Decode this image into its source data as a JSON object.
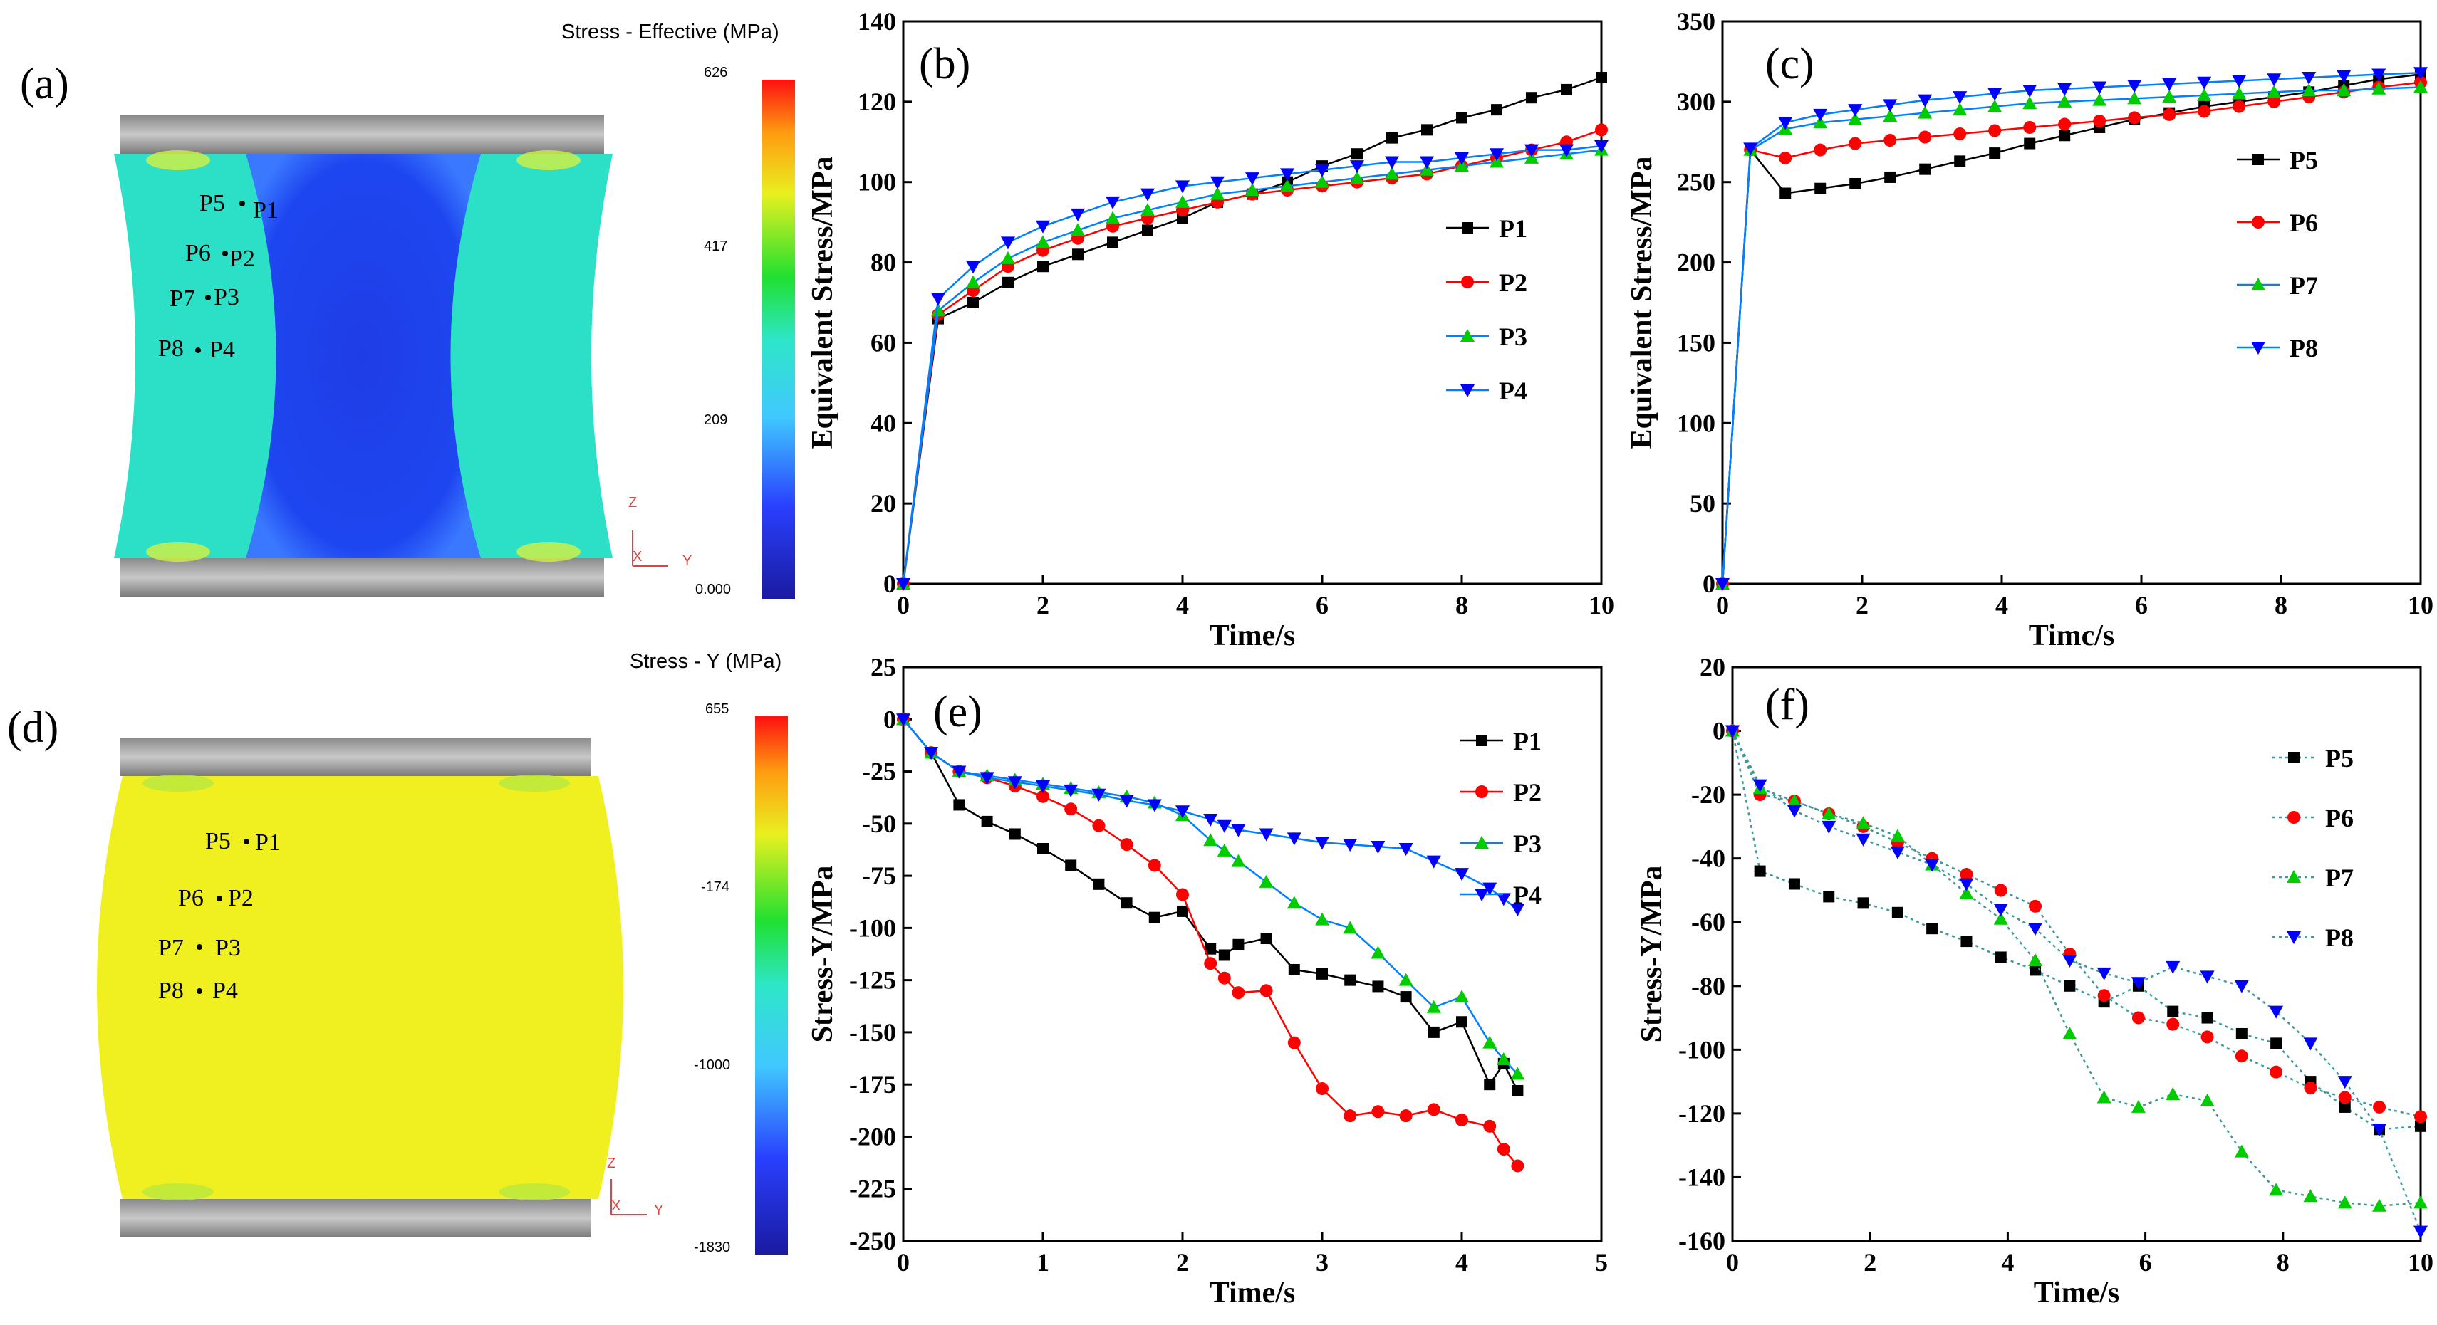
{
  "colors": {
    "P1": "#000000",
    "P2": "#ff0000",
    "P3": "#00cc00",
    "P4": "#0000ff",
    "P5": "#000000",
    "P6": "#ff0000",
    "P7": "#00cc00",
    "P8": "#0000ff",
    "p3_line": "#0080ff",
    "dotted_line": "#3c9a9a"
  },
  "panels": {
    "a": {
      "letter": "(a)",
      "colorbar_title": "Stress - Effective (MPa)",
      "colorbar_ticks": [
        "626",
        "417",
        "209",
        "0.000"
      ],
      "points": [
        "P5",
        "P1",
        "P6",
        "P2",
        "P7",
        "P3",
        "P8",
        "P4"
      ],
      "axis_z": "Z",
      "axis_y": "Y",
      "axis_x": "X"
    },
    "d": {
      "letter": "(d)",
      "colorbar_title": "Stress - Y (MPa)",
      "colorbar_ticks": [
        "655",
        "-174",
        "-1000",
        "-1830"
      ],
      "points": [
        "P5",
        "P1",
        "P6",
        "P2",
        "P7",
        "P3",
        "P8",
        "P4"
      ],
      "axis_z": "Z",
      "axis_y": "Y",
      "axis_x": "X"
    }
  },
  "chart_data": [
    {
      "id": "b",
      "letter": "(b)",
      "type": "line",
      "xlabel": "Time/s",
      "ylabel": "Equivalent Stress/MPa",
      "xlim": [
        0,
        10
      ],
      "ylim": [
        0,
        140
      ],
      "xticks": [
        "0",
        "2",
        "4",
        "6",
        "8",
        "10"
      ],
      "yticks": [
        "0",
        "20",
        "40",
        "60",
        "80",
        "100",
        "120",
        "140"
      ],
      "legend_position": "right",
      "series": [
        {
          "name": "P1",
          "marker": "square",
          "x": [
            0,
            0.5,
            1,
            1.5,
            2,
            2.5,
            3,
            3.5,
            4,
            4.5,
            5,
            5.5,
            6,
            6.5,
            7,
            7.5,
            8,
            8.5,
            9,
            9.5,
            10
          ],
          "y": [
            0,
            66,
            70,
            75,
            79,
            82,
            85,
            88,
            91,
            95,
            97,
            100,
            104,
            107,
            111,
            113,
            116,
            118,
            121,
            123,
            126
          ]
        },
        {
          "name": "P2",
          "marker": "circle",
          "x": [
            0,
            0.5,
            1,
            1.5,
            2,
            2.5,
            3,
            3.5,
            4,
            4.5,
            5,
            5.5,
            6,
            6.5,
            7,
            7.5,
            8,
            8.5,
            9,
            9.5,
            10
          ],
          "y": [
            0,
            67,
            73,
            79,
            83,
            86,
            89,
            91,
            93,
            95,
            97,
            98,
            99,
            100,
            101,
            102,
            104,
            106,
            108,
            110,
            113
          ]
        },
        {
          "name": "P3",
          "marker": "triangle-up",
          "x": [
            0,
            0.5,
            1,
            1.5,
            2,
            2.5,
            3,
            3.5,
            4,
            4.5,
            5,
            5.5,
            6,
            6.5,
            7,
            7.5,
            8,
            8.5,
            9,
            9.5,
            10
          ],
          "y": [
            0,
            68,
            75,
            81,
            85,
            88,
            91,
            93,
            95,
            97,
            98,
            99,
            100,
            101,
            102,
            103,
            104,
            105,
            106,
            107,
            108
          ]
        },
        {
          "name": "P4",
          "marker": "triangle-down",
          "x": [
            0,
            0.5,
            1,
            1.5,
            2,
            2.5,
            3,
            3.5,
            4,
            4.5,
            5,
            5.5,
            6,
            6.5,
            7,
            7.5,
            8,
            8.5,
            9,
            9.5,
            10
          ],
          "y": [
            0,
            71,
            79,
            85,
            89,
            92,
            95,
            97,
            99,
            100,
            101,
            102,
            103,
            104,
            105,
            105,
            106,
            107,
            108,
            108,
            109
          ]
        }
      ]
    },
    {
      "id": "c",
      "letter": "(c)",
      "type": "line",
      "xlabel": "Timc/s",
      "ylabel": "Equivalent Stress/MPa",
      "xlim": [
        0,
        10
      ],
      "ylim": [
        0,
        350
      ],
      "xticks": [
        "0",
        "2",
        "4",
        "6",
        "8",
        "10"
      ],
      "yticks": [
        "0",
        "50",
        "100",
        "150",
        "200",
        "250",
        "300",
        "350"
      ],
      "legend_position": "right",
      "series": [
        {
          "name": "P5",
          "marker": "square",
          "x": [
            0,
            0.4,
            0.9,
            1.4,
            1.9,
            2.4,
            2.9,
            3.4,
            3.9,
            4.4,
            4.9,
            5.4,
            5.9,
            6.4,
            6.9,
            7.4,
            7.9,
            8.4,
            8.9,
            9.4,
            10
          ],
          "y": [
            0,
            270,
            243,
            246,
            249,
            253,
            258,
            263,
            268,
            274,
            279,
            284,
            289,
            293,
            297,
            300,
            303,
            306,
            310,
            314,
            317
          ]
        },
        {
          "name": "P6",
          "marker": "circle",
          "x": [
            0,
            0.4,
            0.9,
            1.4,
            1.9,
            2.4,
            2.9,
            3.4,
            3.9,
            4.4,
            4.9,
            5.4,
            5.9,
            6.4,
            6.9,
            7.4,
            7.9,
            8.4,
            8.9,
            9.4,
            10
          ],
          "y": [
            0,
            270,
            265,
            270,
            274,
            276,
            278,
            280,
            282,
            284,
            286,
            288,
            290,
            292,
            294,
            297,
            300,
            303,
            306,
            309,
            312
          ]
        },
        {
          "name": "P7",
          "marker": "triangle-up",
          "x": [
            0,
            0.4,
            0.9,
            1.4,
            1.9,
            2.4,
            2.9,
            3.4,
            3.9,
            4.4,
            4.9,
            5.4,
            5.9,
            6.4,
            6.9,
            7.4,
            7.9,
            8.4,
            8.9,
            9.4,
            10
          ],
          "y": [
            0,
            270,
            283,
            287,
            289,
            291,
            293,
            295,
            297,
            299,
            300,
            301,
            302,
            303,
            304,
            305,
            306,
            307,
            307,
            308,
            309
          ]
        },
        {
          "name": "P8",
          "marker": "triangle-down",
          "x": [
            0,
            0.4,
            0.9,
            1.4,
            1.9,
            2.4,
            2.9,
            3.4,
            3.9,
            4.4,
            4.9,
            5.4,
            5.9,
            6.4,
            6.9,
            7.4,
            7.9,
            8.4,
            8.9,
            9.4,
            10
          ],
          "y": [
            0,
            271,
            287,
            292,
            295,
            298,
            301,
            303,
            305,
            307,
            308,
            309,
            310,
            311,
            312,
            313,
            314,
            315,
            316,
            317,
            318
          ]
        }
      ]
    },
    {
      "id": "e",
      "letter": "(e)",
      "type": "line",
      "xlabel": "Time/s",
      "ylabel": "Stress-Y/MPa",
      "xlim": [
        0,
        5
      ],
      "ylim": [
        -250,
        25
      ],
      "xticks": [
        "0",
        "1",
        "2",
        "3",
        "4",
        "5"
      ],
      "yticks": [
        "-250",
        "-225",
        "-200",
        "-175",
        "-150",
        "-125",
        "-100",
        "-75",
        "-50",
        "-25",
        "0",
        "25"
      ],
      "legend_position": "top-right",
      "series": [
        {
          "name": "P1",
          "marker": "square",
          "x": [
            0,
            0.2,
            0.4,
            0.6,
            0.8,
            1.0,
            1.2,
            1.4,
            1.6,
            1.8,
            2.0,
            2.2,
            2.3,
            2.4,
            2.6,
            2.8,
            3.0,
            3.2,
            3.4,
            3.6,
            3.8,
            4.0,
            4.2,
            4.3,
            4.4
          ],
          "y": [
            0,
            -16,
            -41,
            -49,
            -55,
            -62,
            -70,
            -79,
            -88,
            -95,
            -92,
            -110,
            -113,
            -108,
            -105,
            -120,
            -122,
            -125,
            -128,
            -133,
            -150,
            -145,
            -175,
            -165,
            -178
          ]
        },
        {
          "name": "P2",
          "marker": "circle",
          "x": [
            0,
            0.2,
            0.4,
            0.6,
            0.8,
            1.0,
            1.2,
            1.4,
            1.6,
            1.8,
            2.0,
            2.2,
            2.3,
            2.4,
            2.6,
            2.8,
            3.0,
            3.2,
            3.4,
            3.6,
            3.8,
            4.0,
            4.2,
            4.3,
            4.4
          ],
          "y": [
            0,
            -16,
            -25,
            -28,
            -32,
            -37,
            -43,
            -51,
            -60,
            -70,
            -84,
            -117,
            -124,
            -131,
            -130,
            -155,
            -177,
            -190,
            -188,
            -190,
            -187,
            -192,
            -195,
            -206,
            -214
          ]
        },
        {
          "name": "P3",
          "marker": "triangle-up",
          "x": [
            0,
            0.2,
            0.4,
            0.6,
            0.8,
            1.0,
            1.2,
            1.4,
            1.6,
            1.8,
            2.0,
            2.2,
            2.3,
            2.4,
            2.6,
            2.8,
            3.0,
            3.2,
            3.4,
            3.6,
            3.8,
            4.0,
            4.2,
            4.3,
            4.4
          ],
          "y": [
            0,
            -16,
            -25,
            -27,
            -29,
            -31,
            -33,
            -35,
            -37,
            -40,
            -46,
            -58,
            -63,
            -68,
            -78,
            -88,
            -96,
            -100,
            -112,
            -125,
            -138,
            -133,
            -155,
            -163,
            -170
          ]
        },
        {
          "name": "P4",
          "marker": "triangle-down",
          "x": [
            0,
            0.2,
            0.4,
            0.6,
            0.8,
            1.0,
            1.2,
            1.4,
            1.6,
            1.8,
            2.0,
            2.2,
            2.3,
            2.4,
            2.6,
            2.8,
            3.0,
            3.2,
            3.4,
            3.6,
            3.8,
            4.0,
            4.2,
            4.3,
            4.4
          ],
          "y": [
            0,
            -16,
            -25,
            -28,
            -30,
            -32,
            -34,
            -36,
            -39,
            -41,
            -44,
            -48,
            -51,
            -53,
            -55,
            -57,
            -59,
            -60,
            -61,
            -62,
            -68,
            -74,
            -81,
            -86,
            -91
          ]
        }
      ]
    },
    {
      "id": "f",
      "letter": "(f)",
      "type": "line",
      "xlabel": "Time/s",
      "ylabel": "Stress-Y/MPa",
      "xlim": [
        0,
        10
      ],
      "ylim": [
        -160,
        20
      ],
      "xticks": [
        "0",
        "2",
        "4",
        "6",
        "8",
        "10"
      ],
      "yticks": [
        "-160",
        "-140",
        "-120",
        "-100",
        "-80",
        "-60",
        "-40",
        "-20",
        "0",
        "20"
      ],
      "legend_position": "top-right",
      "series": [
        {
          "name": "P5",
          "marker": "square",
          "x": [
            0,
            0.4,
            0.9,
            1.4,
            1.9,
            2.4,
            2.9,
            3.4,
            3.9,
            4.4,
            4.9,
            5.4,
            5.9,
            6.4,
            6.9,
            7.4,
            7.9,
            8.4,
            8.9,
            9.4,
            10
          ],
          "y": [
            0,
            -44,
            -48,
            -52,
            -54,
            -57,
            -62,
            -66,
            -71,
            -75,
            -80,
            -85,
            -80,
            -88,
            -90,
            -95,
            -98,
            -110,
            -118,
            -125,
            -124
          ]
        },
        {
          "name": "P6",
          "marker": "circle",
          "x": [
            0,
            0.4,
            0.9,
            1.4,
            1.9,
            2.4,
            2.9,
            3.4,
            3.9,
            4.4,
            4.9,
            5.4,
            5.9,
            6.4,
            6.9,
            7.4,
            7.9,
            8.4,
            8.9,
            9.4,
            10
          ],
          "y": [
            0,
            -20,
            -22,
            -26,
            -30,
            -35,
            -40,
            -45,
            -50,
            -55,
            -70,
            -83,
            -90,
            -92,
            -96,
            -102,
            -107,
            -112,
            -115,
            -118,
            -121
          ]
        },
        {
          "name": "P7",
          "marker": "triangle-up",
          "x": [
            0,
            0.4,
            0.9,
            1.4,
            1.9,
            2.4,
            2.9,
            3.4,
            3.9,
            4.4,
            4.9,
            5.4,
            5.9,
            6.4,
            6.9,
            7.4,
            7.9,
            8.4,
            8.9,
            9.4,
            10
          ],
          "y": [
            0,
            -18,
            -22,
            -26,
            -29,
            -33,
            -42,
            -51,
            -59,
            -72,
            -95,
            -115,
            -118,
            -114,
            -116,
            -132,
            -144,
            -146,
            -148,
            -149,
            -148
          ]
        },
        {
          "name": "P8",
          "marker": "triangle-down",
          "x": [
            0,
            0.4,
            0.9,
            1.4,
            1.9,
            2.4,
            2.9,
            3.4,
            3.9,
            4.4,
            4.9,
            5.4,
            5.9,
            6.4,
            6.9,
            7.4,
            7.9,
            8.4,
            8.9,
            9.4,
            10
          ],
          "y": [
            0,
            -17,
            -25,
            -30,
            -34,
            -38,
            -42,
            -48,
            -56,
            -62,
            -72,
            -76,
            -79,
            -74,
            -77,
            -80,
            -88,
            -98,
            -110,
            -125,
            -157
          ]
        }
      ]
    }
  ]
}
